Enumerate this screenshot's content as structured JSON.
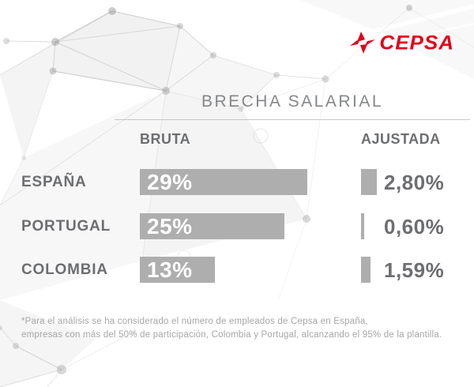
{
  "brand": {
    "name": "CEPSA",
    "logo_color": "#E2001A"
  },
  "header": {
    "title": "BRECHA SALARIAL"
  },
  "chart_data": {
    "type": "bar",
    "orientation": "horizontal",
    "title": "BRECHA SALARIAL",
    "categories": [
      "ESPAÑA",
      "PORTUGAL",
      "COLOMBIA"
    ],
    "series": [
      {
        "name": "BRUTA",
        "values": [
          29,
          25,
          13
        ],
        "value_labels": [
          "29%",
          "25%",
          "13%"
        ]
      },
      {
        "name": "AJUSTADA",
        "values": [
          2.8,
          0.6,
          1.59
        ],
        "value_labels": [
          "2,80%",
          "0,60%",
          "1,59%"
        ]
      }
    ],
    "unit": "percent",
    "axis_range": [
      0,
      29
    ],
    "grid": false,
    "legend_position": "column-headers",
    "bar_color": "#AEAEAE",
    "value_label_color_inside_bar": "#FFFFFF",
    "value_label_color_beside_bar": "#6D6E71"
  },
  "footnote": {
    "line1": "*Para el análisis se ha considerado el número de empleados de Cepsa en España,",
    "line2": "empresas con más del 50% de participación,  Colombia y Portugal, alcanzando el 95% de la plantilla."
  }
}
